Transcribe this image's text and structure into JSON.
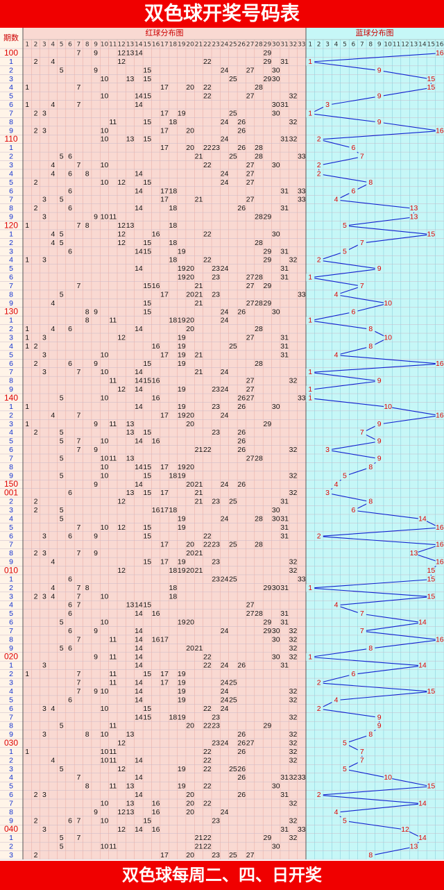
{
  "header": {
    "title": "双色球开奖号码表"
  },
  "table": {
    "period_header": "期数",
    "red_header": "红球分布图",
    "blue_header": "蓝球分布图",
    "red_columns": [
      1,
      2,
      3,
      4,
      5,
      6,
      7,
      8,
      9,
      10,
      11,
      12,
      13,
      14,
      15,
      16,
      17,
      18,
      19,
      20,
      21,
      22,
      23,
      24,
      25,
      26,
      27,
      28,
      29,
      30,
      31,
      32,
      33
    ],
    "blue_columns": [
      1,
      2,
      3,
      4,
      5,
      6,
      7,
      8,
      9,
      10,
      11,
      12,
      13,
      14,
      15,
      16
    ],
    "rows": [
      {
        "period": "100",
        "red": [
          7,
          9,
          12,
          13,
          14,
          29
        ],
        "blue": 16
      },
      {
        "period": "1",
        "red": [
          2,
          4,
          12,
          22,
          29,
          31
        ],
        "blue": 1
      },
      {
        "period": "2",
        "red": [
          5,
          9,
          15,
          24,
          27,
          30
        ],
        "blue": 9
      },
      {
        "period": "3",
        "red": [
          10,
          13,
          15,
          25,
          29,
          30
        ],
        "blue": 15
      },
      {
        "period": "4",
        "red": [
          1,
          7,
          17,
          20,
          22,
          28
        ],
        "blue": 15
      },
      {
        "period": "5",
        "red": [
          10,
          14,
          15,
          22,
          27,
          32
        ],
        "blue": 9
      },
      {
        "period": "6",
        "red": [
          1,
          4,
          7,
          14,
          30,
          31
        ],
        "blue": 3
      },
      {
        "period": "7",
        "red": [
          2,
          3,
          17,
          19,
          25,
          30
        ],
        "blue": 1
      },
      {
        "period": "8",
        "red": [
          11,
          15,
          18,
          24,
          26,
          32
        ],
        "blue": 9
      },
      {
        "period": "9",
        "red": [
          2,
          3,
          10,
          17,
          20,
          26
        ],
        "blue": 16
      },
      {
        "period": "110",
        "red": [
          10,
          13,
          15,
          24,
          31,
          32
        ],
        "blue": 2
      },
      {
        "period": "1",
        "red": [
          17,
          20,
          22,
          23,
          26,
          28
        ],
        "blue": 6
      },
      {
        "period": "2",
        "red": [
          5,
          6,
          21,
          25,
          28,
          33
        ],
        "blue": 7
      },
      {
        "period": "3",
        "red": [
          4,
          7,
          10,
          22,
          27,
          30
        ],
        "blue": 2
      },
      {
        "period": "4",
        "red": [
          4,
          6,
          8,
          14,
          24,
          27
        ],
        "blue": 2
      },
      {
        "period": "5",
        "red": [
          2,
          10,
          12,
          15,
          24,
          27
        ],
        "blue": 8
      },
      {
        "period": "6",
        "red": [
          6,
          14,
          17,
          18,
          31,
          33
        ],
        "blue": 6
      },
      {
        "period": "7",
        "red": [
          3,
          5,
          17,
          21,
          27,
          33
        ],
        "blue": 4
      },
      {
        "period": "8",
        "red": [
          2,
          6,
          14,
          18,
          26,
          31
        ],
        "blue": 13
      },
      {
        "period": "9",
        "red": [
          3,
          9,
          10,
          11,
          28,
          29
        ],
        "blue": 13
      },
      {
        "period": "120",
        "red": [
          1,
          7,
          8,
          12,
          13,
          18
        ],
        "blue": 5
      },
      {
        "period": "1",
        "red": [
          4,
          5,
          12,
          16,
          22,
          30
        ],
        "blue": 15
      },
      {
        "period": "2",
        "red": [
          4,
          5,
          12,
          15,
          18,
          28
        ],
        "blue": 7
      },
      {
        "period": "3",
        "red": [
          6,
          14,
          15,
          19,
          29,
          31
        ],
        "blue": 5
      },
      {
        "period": "4",
        "red": [
          1,
          3,
          18,
          22,
          29,
          32
        ],
        "blue": 2
      },
      {
        "period": "5",
        "red": [
          14,
          19,
          20,
          23,
          24,
          31
        ],
        "blue": 9
      },
      {
        "period": "6",
        "red": [
          19,
          20,
          23,
          27,
          28,
          31
        ],
        "blue": 1
      },
      {
        "period": "7",
        "red": [
          7,
          15,
          16,
          21,
          27,
          29
        ],
        "blue": 7
      },
      {
        "period": "8",
        "red": [
          5,
          17,
          20,
          21,
          23,
          33
        ],
        "blue": 4
      },
      {
        "period": "9",
        "red": [
          4,
          15,
          21,
          27,
          28,
          29
        ],
        "blue": 10
      },
      {
        "period": "130",
        "red": [
          8,
          9,
          15,
          24,
          26,
          30
        ],
        "blue": 6
      },
      {
        "period": "1",
        "red": [
          8,
          11,
          18,
          19,
          20,
          24
        ],
        "blue": 1
      },
      {
        "period": "2",
        "red": [
          1,
          4,
          6,
          14,
          20,
          28
        ],
        "blue": 8
      },
      {
        "period": "3",
        "red": [
          1,
          3,
          12,
          19,
          27,
          31
        ],
        "blue": 10
      },
      {
        "period": "4",
        "red": [
          1,
          2,
          16,
          19,
          25,
          31
        ],
        "blue": 8
      },
      {
        "period": "5",
        "red": [
          3,
          10,
          17,
          19,
          21,
          31
        ],
        "blue": 4
      },
      {
        "period": "6",
        "red": [
          2,
          6,
          9,
          15,
          19,
          28
        ],
        "blue": 16
      },
      {
        "period": "7",
        "red": [
          3,
          7,
          10,
          14,
          21,
          24
        ],
        "blue": 1
      },
      {
        "period": "8",
        "red": [
          11,
          14,
          15,
          16,
          27,
          32
        ],
        "blue": 9
      },
      {
        "period": "9",
        "red": [
          12,
          14,
          19,
          23,
          24,
          27
        ],
        "blue": 1
      },
      {
        "period": "140",
        "red": [
          5,
          10,
          16,
          26,
          27,
          33
        ],
        "blue": 1
      },
      {
        "period": "1",
        "red": [
          1,
          14,
          19,
          23,
          26,
          30
        ],
        "blue": 10
      },
      {
        "period": "2",
        "red": [
          4,
          7,
          17,
          19,
          20,
          24
        ],
        "blue": 16
      },
      {
        "period": "3",
        "red": [
          1,
          9,
          11,
          13,
          20,
          29
        ],
        "blue": 9
      },
      {
        "period": "4",
        "red": [
          2,
          5,
          13,
          15,
          23,
          26
        ],
        "blue": 7
      },
      {
        "period": "5",
        "red": [
          5,
          7,
          10,
          14,
          16,
          26
        ],
        "blue": 9
      },
      {
        "period": "6",
        "red": [
          7,
          9,
          21,
          22,
          26,
          32
        ],
        "blue": 3
      },
      {
        "period": "7",
        "red": [
          5,
          10,
          11,
          13,
          27,
          28
        ],
        "blue": 9
      },
      {
        "period": "8",
        "red": [
          10,
          14,
          15,
          17,
          19,
          20
        ],
        "blue": 8
      },
      {
        "period": "9",
        "red": [
          5,
          10,
          15,
          18,
          19,
          32
        ],
        "blue": 5
      },
      {
        "period": "150",
        "red": [
          9,
          14,
          20,
          21,
          24,
          26
        ],
        "blue": 4
      },
      {
        "period": "001",
        "red": [
          6,
          13,
          15,
          17,
          21,
          32
        ],
        "blue": 3
      },
      {
        "period": "2",
        "red": [
          2,
          12,
          21,
          23,
          25,
          31
        ],
        "blue": 8
      },
      {
        "period": "3",
        "red": [
          2,
          5,
          16,
          17,
          18,
          30
        ],
        "blue": 6
      },
      {
        "period": "4",
        "red": [
          5,
          19,
          24,
          28,
          30,
          31
        ],
        "blue": 14
      },
      {
        "period": "5",
        "red": [
          7,
          10,
          12,
          15,
          19,
          31
        ],
        "blue": 16
      },
      {
        "period": "6",
        "red": [
          3,
          6,
          9,
          15,
          22,
          31
        ],
        "blue": 2
      },
      {
        "period": "7",
        "red": [
          17,
          20,
          22,
          23,
          25,
          28
        ],
        "blue": 16
      },
      {
        "period": "8",
        "red": [
          2,
          3,
          7,
          9,
          20,
          21
        ],
        "blue": 13
      },
      {
        "period": "9",
        "red": [
          4,
          15,
          17,
          19,
          23,
          32
        ],
        "blue": 16
      },
      {
        "period": "010",
        "red": [
          12,
          18,
          19,
          20,
          21,
          32
        ],
        "blue": 15
      },
      {
        "period": "1",
        "red": [
          6,
          23,
          24,
          25,
          33
        ],
        "blue": 15
      },
      {
        "period": "2",
        "red": [
          4,
          7,
          8,
          18,
          29,
          30,
          31
        ],
        "blue": 1
      },
      {
        "period": "3",
        "red": [
          2,
          3,
          4,
          7,
          10,
          18
        ],
        "blue": 15
      },
      {
        "period": "4",
        "red": [
          6,
          7,
          13,
          14,
          15,
          27
        ],
        "blue": 4
      },
      {
        "period": "5",
        "red": [
          6,
          14,
          16,
          27,
          28,
          31
        ],
        "blue": 7
      },
      {
        "period": "6",
        "red": [
          5,
          10,
          19,
          20,
          29,
          31
        ],
        "blue": 14
      },
      {
        "period": "7",
        "red": [
          6,
          9,
          14,
          24,
          29,
          30,
          32
        ],
        "blue": 7
      },
      {
        "period": "8",
        "red": [
          7,
          11,
          14,
          16,
          17,
          30,
          32
        ],
        "blue": 16
      },
      {
        "period": "9",
        "red": [
          5,
          6,
          14,
          20,
          21,
          32
        ],
        "blue": 8
      },
      {
        "period": "020",
        "red": [
          9,
          11,
          14,
          22,
          30,
          32
        ],
        "blue": 1
      },
      {
        "period": "1",
        "red": [
          3,
          14,
          22,
          24,
          26,
          31
        ],
        "blue": 14
      },
      {
        "period": "2",
        "red": [
          1,
          7,
          11,
          15,
          17,
          19
        ],
        "blue": 6
      },
      {
        "period": "3",
        "red": [
          7,
          11,
          14,
          17,
          19,
          24,
          25
        ],
        "blue": 2
      },
      {
        "period": "4",
        "red": [
          7,
          9,
          10,
          14,
          19,
          24,
          32
        ],
        "blue": 15
      },
      {
        "period": "5",
        "red": [
          6,
          14,
          19,
          24,
          25,
          32
        ],
        "blue": 4
      },
      {
        "period": "6",
        "red": [
          3,
          4,
          10,
          15,
          22,
          24
        ],
        "blue": 2
      },
      {
        "period": "7",
        "red": [
          14,
          15,
          18,
          19,
          23,
          32
        ],
        "blue": 9
      },
      {
        "period": "8",
        "red": [
          5,
          11,
          20,
          22,
          23,
          29
        ],
        "blue": 9
      },
      {
        "period": "9",
        "red": [
          3,
          8,
          10,
          13,
          26,
          32
        ],
        "blue": 8
      },
      {
        "period": "030",
        "red": [
          12,
          23,
          24,
          26,
          27,
          32
        ],
        "blue": 5
      },
      {
        "period": "1",
        "red": [
          1,
          10,
          11,
          22,
          26,
          32
        ],
        "blue": 7
      },
      {
        "period": "2",
        "red": [
          4,
          10,
          11,
          14,
          22,
          32
        ],
        "blue": 7
      },
      {
        "period": "3",
        "red": [
          5,
          12,
          19,
          22,
          25,
          26
        ],
        "blue": 5
      },
      {
        "period": "4",
        "red": [
          7,
          14,
          26,
          31,
          32,
          33
        ],
        "blue": 10
      },
      {
        "period": "5",
        "red": [
          8,
          11,
          13,
          19,
          22,
          30
        ],
        "blue": 15
      },
      {
        "period": "6",
        "red": [
          2,
          3,
          14,
          20,
          26,
          31
        ],
        "blue": 2
      },
      {
        "period": "7",
        "red": [
          10,
          13,
          16,
          20,
          22,
          32
        ],
        "blue": 14
      },
      {
        "period": "8",
        "red": [
          9,
          12,
          13,
          16,
          20,
          24
        ],
        "blue": 4
      },
      {
        "period": "9",
        "red": [
          2,
          6,
          7,
          10,
          15,
          23,
          32
        ],
        "blue": 5
      },
      {
        "period": "040",
        "red": [
          3,
          12,
          14,
          16,
          31,
          33
        ],
        "blue": 12
      },
      {
        "period": "1",
        "red": [
          5,
          7,
          21,
          22,
          29,
          32
        ],
        "blue": 14
      },
      {
        "period": "2",
        "red": [
          5,
          10,
          11,
          21,
          22,
          30
        ],
        "blue": 13
      },
      {
        "period": "3",
        "red": [
          2,
          17,
          20,
          23,
          25,
          27
        ],
        "blue": 8
      }
    ]
  },
  "footer": {
    "text": "双色球每周二、四、日开奖"
  }
}
